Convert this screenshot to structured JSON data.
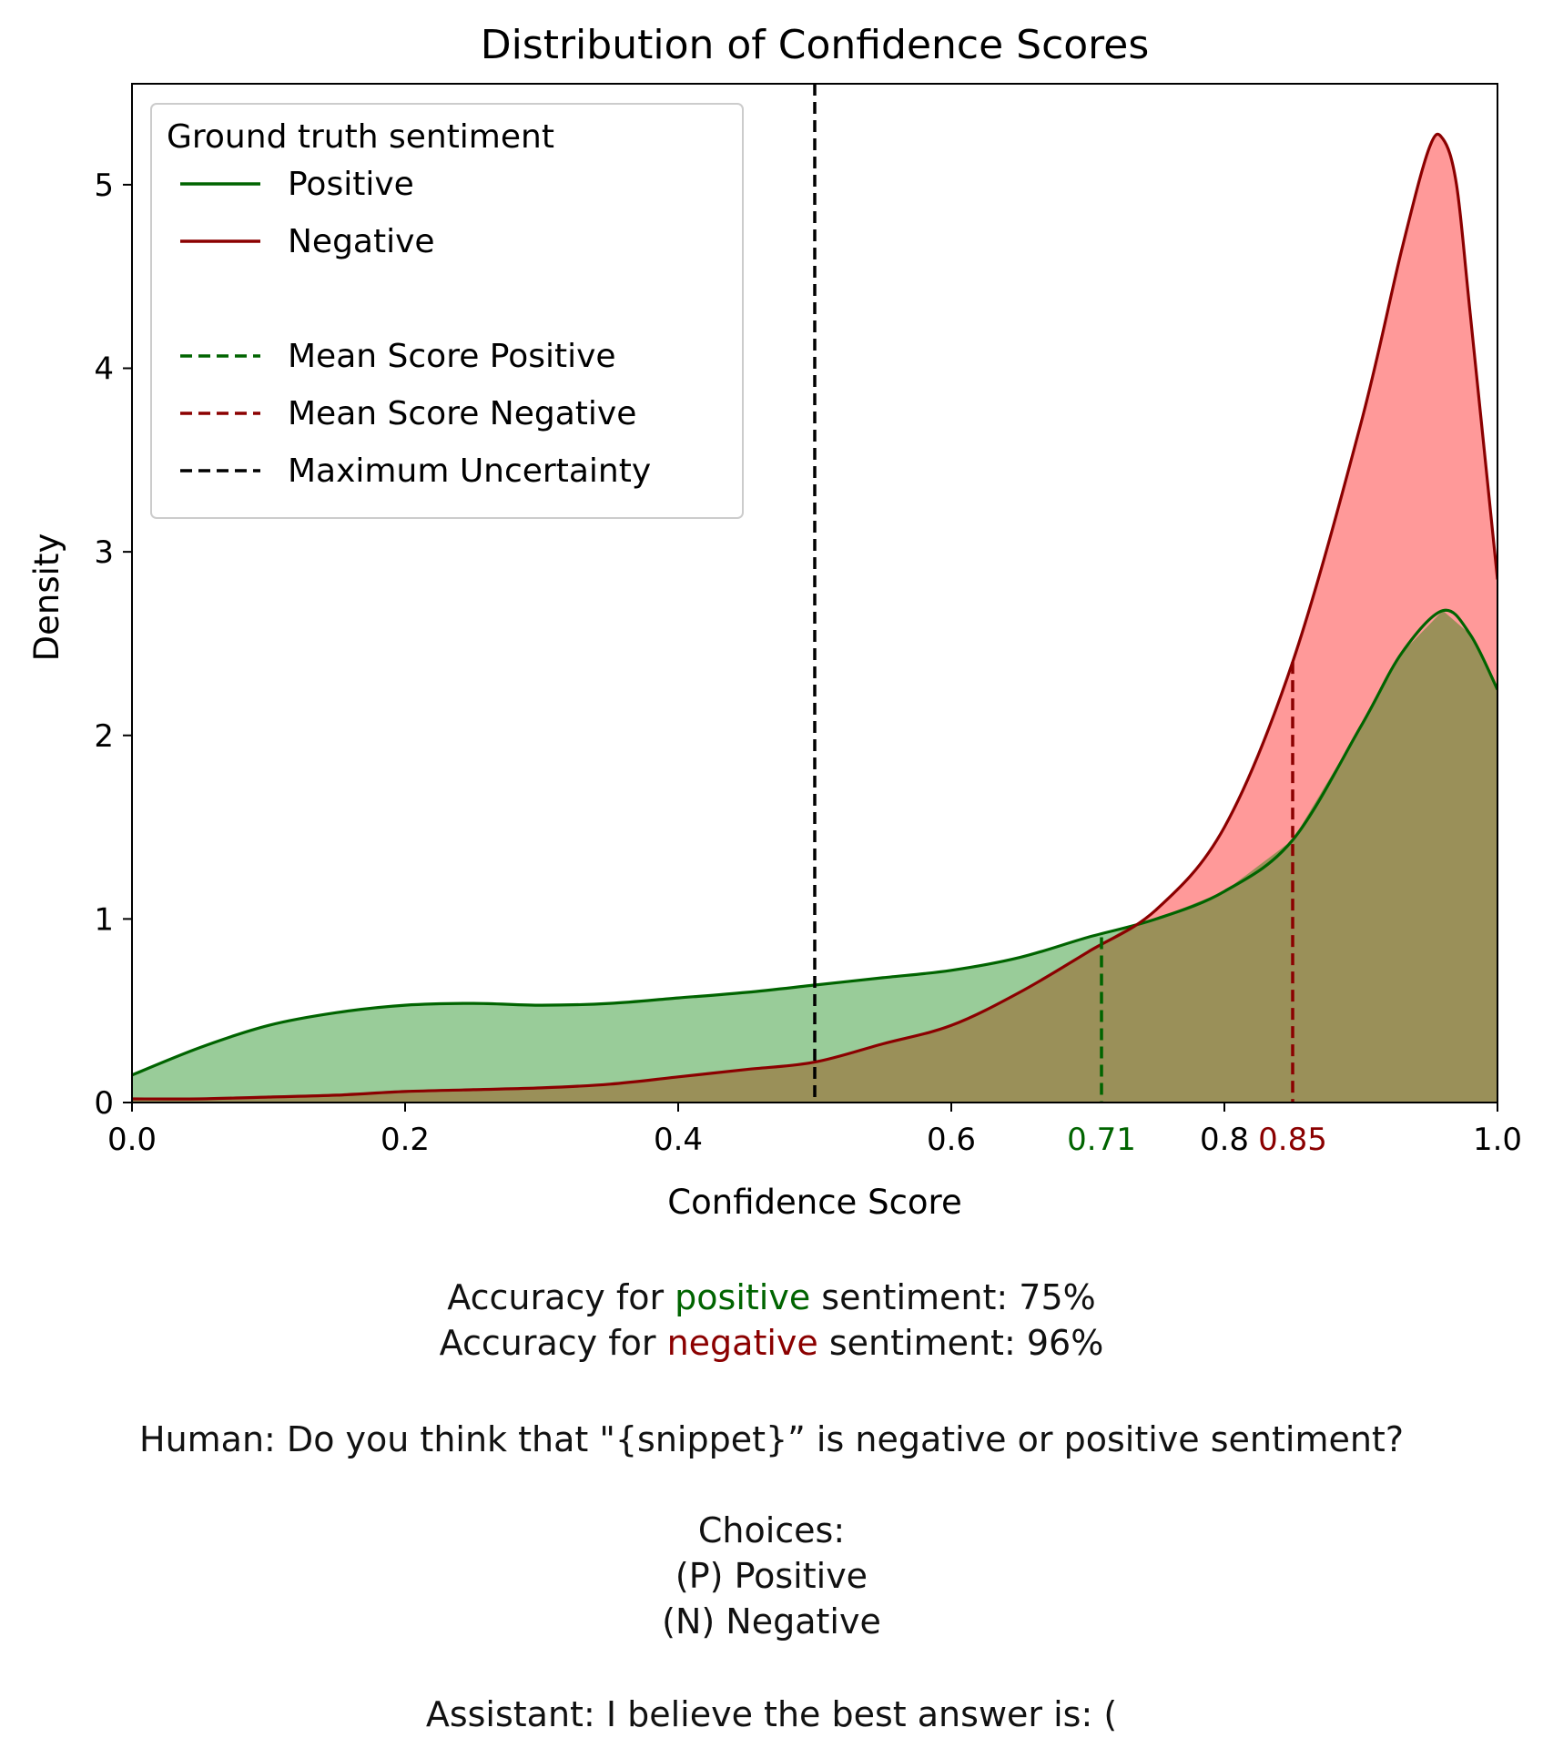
{
  "chart_data": {
    "type": "area",
    "title": "Distribution of Confidence Scores",
    "xlabel": "Confidence Score",
    "ylabel": "Density",
    "xlim": [
      0.0,
      1.0
    ],
    "ylim": [
      0,
      5.55
    ],
    "x_ticks": [
      "0.0",
      "0.2",
      "0.4",
      "0.6",
      "0.8",
      "1.0"
    ],
    "y_ticks": [
      "0",
      "1",
      "2",
      "3",
      "4",
      "5"
    ],
    "grid": false,
    "legend": {
      "title": "Ground truth sentiment",
      "placement": "top-left",
      "entries": [
        {
          "label": "Positive",
          "style": "solid",
          "color": "#006400"
        },
        {
          "label": "Negative",
          "style": "solid",
          "color": "#8b0000"
        },
        {
          "label": "Mean Score Positive",
          "style": "dashed",
          "color": "#006400"
        },
        {
          "label": "Mean Score Negative",
          "style": "dashed",
          "color": "#8b0000"
        },
        {
          "label": "Maximum Uncertainty",
          "style": "dashed",
          "color": "#000000"
        }
      ]
    },
    "series": [
      {
        "name": "Positive",
        "line_color": "#006400",
        "fill_color": "#99cc99",
        "x": [
          0.0,
          0.05,
          0.1,
          0.15,
          0.2,
          0.25,
          0.3,
          0.35,
          0.4,
          0.45,
          0.5,
          0.55,
          0.6,
          0.65,
          0.7,
          0.75,
          0.8,
          0.85,
          0.9,
          0.93,
          0.96,
          0.98,
          1.0
        ],
        "y": [
          0.15,
          0.3,
          0.42,
          0.49,
          0.53,
          0.54,
          0.53,
          0.54,
          0.57,
          0.6,
          0.64,
          0.68,
          0.72,
          0.79,
          0.9,
          1.0,
          1.15,
          1.43,
          2.05,
          2.45,
          2.68,
          2.55,
          2.25
        ]
      },
      {
        "name": "Negative",
        "line_color": "#8b0000",
        "fill_color": "#ff9999",
        "x": [
          0.0,
          0.05,
          0.1,
          0.15,
          0.2,
          0.25,
          0.3,
          0.35,
          0.4,
          0.45,
          0.5,
          0.55,
          0.6,
          0.65,
          0.7,
          0.75,
          0.8,
          0.85,
          0.9,
          0.93,
          0.95,
          0.96,
          0.97,
          0.98,
          1.0
        ],
        "y": [
          0.02,
          0.02,
          0.03,
          0.04,
          0.06,
          0.07,
          0.08,
          0.1,
          0.14,
          0.18,
          0.22,
          0.32,
          0.42,
          0.6,
          0.82,
          1.05,
          1.5,
          2.4,
          3.7,
          4.65,
          5.2,
          5.25,
          5.0,
          4.3,
          2.85
        ]
      }
    ],
    "overlap_fill_color": "#9a9059",
    "reference_lines": [
      {
        "name": "Mean Score Positive",
        "x": 0.71,
        "color": "#006400",
        "label": "0.71",
        "y_top": 0.9
      },
      {
        "name": "Mean Score Negative",
        "x": 0.85,
        "color": "#8b0000",
        "label": "0.85",
        "y_top": 2.4
      },
      {
        "name": "Maximum Uncertainty",
        "x": 0.5,
        "color": "#000000",
        "label": "",
        "y_top": 5.55
      }
    ]
  },
  "caption": {
    "acc_pos_prefix": "Accuracy for ",
    "acc_pos_word": "positive",
    "acc_pos_suffix": " sentiment: 75%",
    "acc_neg_prefix": "Accuracy for ",
    "acc_neg_word": "negative",
    "acc_neg_suffix": " sentiment: 96%",
    "human_line": "Human: Do you think that \"{snippet}” is negative or positive sentiment?",
    "choices_header": "Choices:",
    "choice_p": "(P) Positive",
    "choice_n": "(N) Negative",
    "assistant_line": "Assistant: I believe the best answer is: ("
  }
}
